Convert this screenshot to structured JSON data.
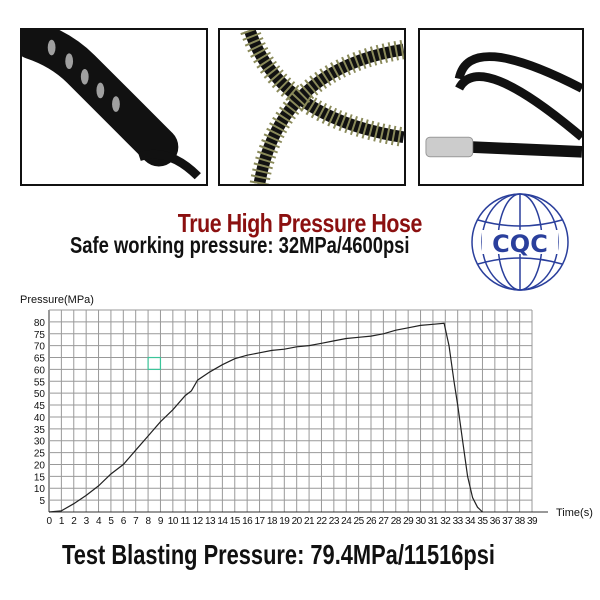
{
  "photos": [
    {
      "subject": "coiled black hose"
    },
    {
      "subject": "hose with spring guard"
    },
    {
      "subject": "straight black hose with metal fitting"
    }
  ],
  "headline": "True High Pressure Hose",
  "safe_working_pressure": "Safe working pressure: 32MPa/4600psi",
  "logo_text": "CQC",
  "blasting_pressure": "Test Blasting Pressure: 79.4MPa/11516psi",
  "colors": {
    "headline": "#8b1010",
    "logo": "#2a3f9c",
    "marker": "#3cc49a"
  },
  "chart_data": {
    "type": "line",
    "title": "",
    "xlabel": "Time(s)",
    "ylabel": "Pressure(MPa)",
    "xlim": [
      0,
      39
    ],
    "ylim": [
      0,
      85
    ],
    "grid": true,
    "x_ticks": [
      0,
      1,
      2,
      3,
      4,
      5,
      6,
      7,
      8,
      9,
      10,
      11,
      12,
      13,
      14,
      15,
      16,
      17,
      18,
      19,
      20,
      21,
      22,
      23,
      24,
      25,
      26,
      27,
      28,
      29,
      30,
      31,
      32,
      33,
      34,
      35,
      36,
      37,
      38,
      39
    ],
    "y_ticks": [
      5,
      10,
      15,
      20,
      25,
      30,
      35,
      40,
      45,
      50,
      55,
      60,
      65,
      70,
      75,
      80
    ],
    "series": [
      {
        "x": [
          0,
          1,
          2,
          3,
          4,
          5,
          6,
          7,
          8,
          9,
          10,
          11,
          11.5,
          12,
          13,
          14,
          15,
          16,
          17,
          18,
          19,
          20,
          21,
          22,
          23,
          24,
          25,
          26,
          27,
          28,
          29,
          30,
          31,
          31.9,
          32.3,
          32.7,
          33,
          33.4,
          33.8,
          34.2,
          34.6,
          35
        ],
        "y": [
          0,
          0.5,
          3.5,
          7,
          11,
          16,
          20,
          26,
          32,
          38,
          43,
          49,
          51,
          55.5,
          59,
          62,
          64.5,
          66,
          67,
          68,
          68.5,
          69.5,
          70,
          71,
          72,
          73,
          73.5,
          74,
          75,
          76.5,
          77.5,
          78.5,
          79,
          79.4,
          70,
          55,
          45,
          30,
          15,
          6,
          2,
          0
        ]
      }
    ],
    "annotations": [
      {
        "type": "square-marker",
        "x": [
          8,
          9
        ],
        "y": [
          60,
          65
        ]
      }
    ]
  }
}
